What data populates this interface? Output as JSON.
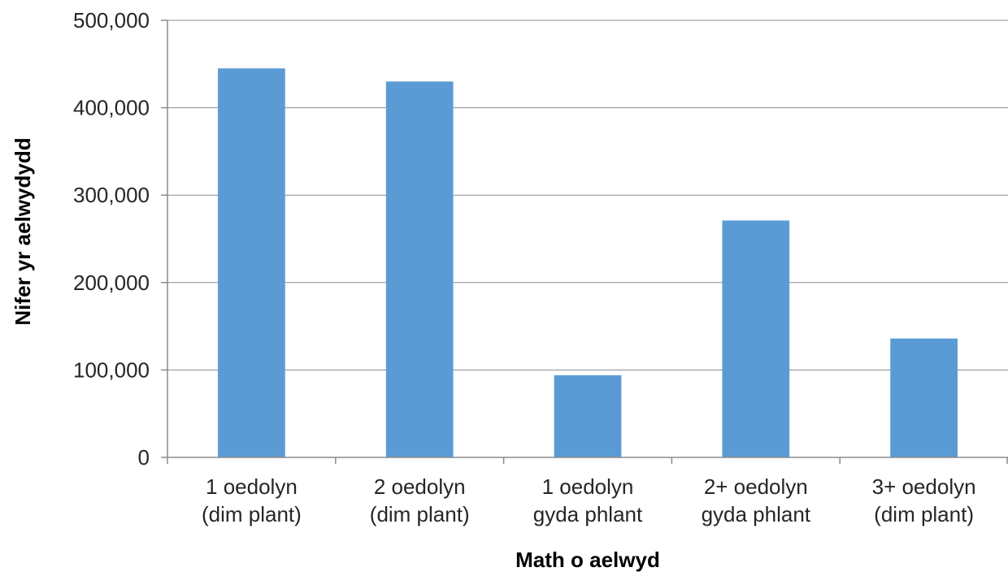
{
  "chart_data": {
    "type": "bar",
    "title": "",
    "xlabel": "Math o aelwyd",
    "ylabel": "Nifer yr aelwydydd",
    "ylim": [
      0,
      500000
    ],
    "yticks": [
      "0",
      "100,000",
      "200,000",
      "300,000",
      "400,000",
      "500,000"
    ],
    "grid": true,
    "legend": "none",
    "categories": [
      [
        "1 oedolyn",
        "(dim plant)"
      ],
      [
        "2 oedolyn",
        "(dim plant)"
      ],
      [
        "1 oedolyn",
        "gyda phlant"
      ],
      [
        "2+ oedolyn",
        "gyda phlant"
      ],
      [
        "3+ oedolyn",
        "(dim plant)"
      ]
    ],
    "values": [
      445000,
      430000,
      94000,
      271000,
      136000
    ],
    "bar_color": "#5b9bd5"
  }
}
